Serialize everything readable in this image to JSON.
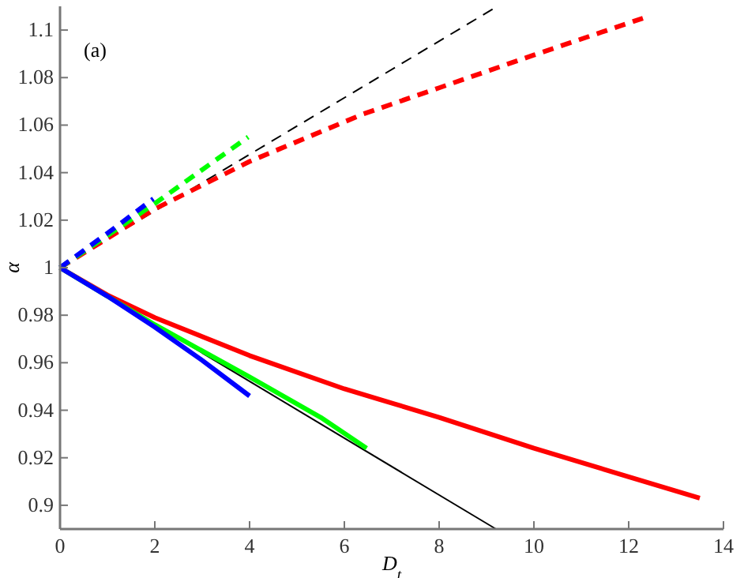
{
  "chart_data": {
    "type": "line",
    "xlabel": "D$_{t}$",
    "ylabel": "α",
    "annotations": [
      "(a)"
    ],
    "xlim": [
      0,
      14
    ],
    "ylim": [
      0.89,
      1.11
    ],
    "xticks": [
      0,
      2,
      4,
      6,
      8,
      10,
      12,
      14
    ],
    "yticks": [
      0.9,
      0.92,
      0.94,
      0.96,
      0.98,
      1,
      1.02,
      1.04,
      1.06,
      1.08,
      1.1
    ],
    "grid": false,
    "marker": "none",
    "series": [
      {
        "color": "#000000",
        "line_style": "dashed",
        "x": [
          0,
          9.23
        ],
        "values": [
          1,
          1.11
        ]
      },
      {
        "color": "#000000",
        "line_style": "solid",
        "x": [
          0,
          9.2
        ],
        "values": [
          1,
          0.89
        ]
      },
      {
        "color": "#ff0000",
        "line_style": "dashed",
        "x": [
          0,
          2,
          4,
          6.4,
          8,
          10,
          12.3
        ],
        "values": [
          1,
          1.0247,
          1.0447,
          1.0647,
          1.0757,
          1.0895,
          1.105
        ]
      },
      {
        "color": "#00ff00",
        "line_style": "dashed",
        "x": [
          0,
          2,
          3.97
        ],
        "values": [
          1,
          1.027,
          1.055
        ]
      },
      {
        "color": "#0000ff",
        "line_style": "dashed",
        "x": [
          0,
          1,
          1.97
        ],
        "values": [
          1,
          1.0145,
          1.029
        ]
      },
      {
        "color": "#ff0000",
        "line_style": "solid",
        "x": [
          0,
          1,
          2,
          4,
          6,
          8,
          10,
          12,
          13.5
        ],
        "values": [
          1,
          0.9885,
          0.979,
          0.963,
          0.949,
          0.937,
          0.924,
          0.912,
          0.903
        ]
      },
      {
        "color": "#00ff00",
        "line_style": "solid",
        "x": [
          0,
          2,
          4,
          5.5,
          6.47
        ],
        "values": [
          1,
          0.976,
          0.954,
          0.937,
          0.924
        ]
      },
      {
        "color": "#0000ff",
        "line_style": "solid",
        "x": [
          0,
          1,
          2,
          3,
          4
        ],
        "values": [
          1,
          0.988,
          0.975,
          0.961,
          0.946
        ]
      }
    ]
  }
}
